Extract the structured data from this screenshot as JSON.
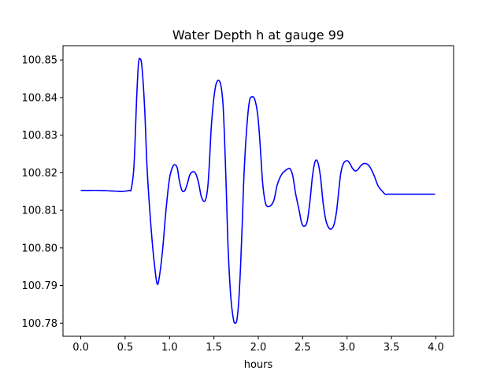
{
  "chart_data": {
    "type": "line",
    "title": "Water Depth h at gauge 99",
    "xlabel": "hours",
    "ylabel": "",
    "xlim": [
      -0.2,
      4.2
    ],
    "ylim": [
      100.7765,
      100.8538
    ],
    "xticks": [
      0.0,
      0.5,
      1.0,
      1.5,
      2.0,
      2.5,
      3.0,
      3.5,
      4.0
    ],
    "xtick_labels": [
      "0.0",
      "0.5",
      "1.0",
      "1.5",
      "2.0",
      "2.5",
      "3.0",
      "3.5",
      "4.0"
    ],
    "yticks": [
      100.78,
      100.79,
      100.8,
      100.81,
      100.82,
      100.83,
      100.84,
      100.85
    ],
    "ytick_labels": [
      "100.78",
      "100.79",
      "100.80",
      "100.81",
      "100.82",
      "100.83",
      "100.84",
      "100.85"
    ],
    "grid": false,
    "series": [
      {
        "color": "#0000ff",
        "x": [
          0.0,
          0.1,
          0.2,
          0.3,
          0.4,
          0.45,
          0.5,
          0.55,
          0.57,
          0.6,
          0.63,
          0.65,
          0.67,
          0.69,
          0.72,
          0.75,
          0.8,
          0.84,
          0.86,
          0.88,
          0.92,
          0.96,
          1.0,
          1.04,
          1.07,
          1.09,
          1.11,
          1.14,
          1.17,
          1.2,
          1.23,
          1.27,
          1.3,
          1.33,
          1.36,
          1.4,
          1.43,
          1.45,
          1.47,
          1.5,
          1.53,
          1.57,
          1.6,
          1.62,
          1.64,
          1.66,
          1.69,
          1.72,
          1.74,
          1.76,
          1.78,
          1.8,
          1.82,
          1.84,
          1.87,
          1.9,
          1.93,
          1.96,
          1.99,
          2.01,
          2.03,
          2.05,
          2.08,
          2.11,
          2.15,
          2.18,
          2.21,
          2.24,
          2.27,
          2.3,
          2.33,
          2.36,
          2.39,
          2.42,
          2.46,
          2.49,
          2.52,
          2.55,
          2.58,
          2.61,
          2.64,
          2.67,
          2.7,
          2.73,
          2.76,
          2.79,
          2.82,
          2.85,
          2.88,
          2.91,
          2.93,
          2.96,
          3.0,
          3.03,
          3.06,
          3.09,
          3.12,
          3.16,
          3.2,
          3.25,
          3.3,
          3.35,
          3.4,
          3.43,
          3.46,
          3.5,
          3.55,
          3.6,
          3.65,
          3.7,
          3.73,
          3.77,
          3.81,
          3.85,
          3.89,
          3.93,
          3.96,
          3.99
        ],
        "y": [
          100.8153,
          100.8153,
          100.8153,
          100.8152,
          100.8151,
          100.815,
          100.8151,
          100.8153,
          100.8158,
          100.822,
          100.84,
          100.849,
          100.8503,
          100.848,
          100.837,
          100.82,
          100.803,
          100.7935,
          100.7905,
          100.7915,
          100.799,
          100.81,
          100.8185,
          100.8218,
          100.822,
          100.821,
          100.818,
          100.8153,
          100.8152,
          100.817,
          100.8195,
          100.8203,
          100.8195,
          100.817,
          100.8135,
          100.8125,
          100.816,
          100.823,
          100.832,
          100.84,
          100.844,
          100.844,
          100.839,
          100.829,
          100.815,
          100.8,
          100.787,
          100.781,
          100.78,
          100.781,
          100.786,
          100.795,
          100.807,
          100.82,
          100.832,
          100.839,
          100.8402,
          100.8395,
          100.836,
          100.831,
          100.824,
          100.817,
          100.812,
          100.811,
          100.8115,
          100.813,
          100.8165,
          100.8185,
          100.8198,
          100.8205,
          100.821,
          100.821,
          100.819,
          100.8145,
          100.81,
          100.8065,
          100.8058,
          100.807,
          100.812,
          100.819,
          100.823,
          100.8228,
          100.819,
          100.812,
          100.8075,
          100.8055,
          100.805,
          100.806,
          100.8095,
          100.816,
          100.82,
          100.8225,
          100.8232,
          100.8225,
          100.8212,
          100.8205,
          100.8208,
          100.822,
          100.8225,
          100.8218,
          100.8195,
          100.8165,
          100.815,
          100.8143,
          100.8143,
          100.8143,
          100.8143,
          100.8143,
          100.8143,
          100.8143,
          100.8143,
          100.8143,
          100.8143,
          100.8143,
          100.8143,
          100.8143,
          100.8143,
          100.8143
        ]
      }
    ]
  }
}
